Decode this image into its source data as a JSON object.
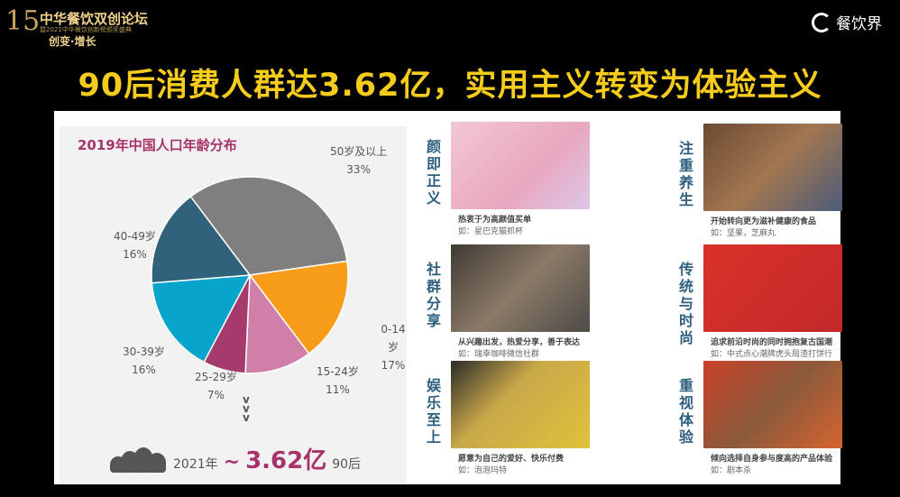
{
  "logo": {
    "number": "15",
    "name": "中华餐饮双创论坛",
    "subtitle": "暨2021中华餐饮创新榜颁奖盛典",
    "slogan": "创变·增长"
  },
  "brand": {
    "name": "餐饮界"
  },
  "title": "90后消费人群达3.62亿，实用主义转变为体验主义",
  "chart_data": {
    "type": "pie",
    "title": "2019年中国人口年龄分布",
    "categories": [
      "50岁及以上",
      "0-14岁",
      "15-24岁",
      "25-29岁",
      "30-39岁",
      "40-49岁"
    ],
    "values": [
      33,
      17,
      11,
      7,
      16,
      16
    ],
    "value_labels": [
      "33%",
      "17%",
      "11%",
      "7%",
      "16%",
      "16%"
    ],
    "colors": [
      "#7f7f7f",
      "#f99c1a",
      "#d07fa8",
      "#a53b6d",
      "#08a4cc",
      "#31627b"
    ]
  },
  "summary": {
    "year": "2021年",
    "tilde": "~",
    "value": "3.62亿",
    "suffix": "90后"
  },
  "trends": [
    {
      "heading": "颜即正义",
      "line1": "热衷于为高颜值买单",
      "line2": "如：星巴克猫抓杯"
    },
    {
      "heading": "注重养生",
      "line1": "开始转向更为滋补健康的食品",
      "line2": "如：坚果，芝麻丸"
    },
    {
      "heading": "社群分享",
      "line1": "从兴趣出发，热爱分享，善于表达",
      "line2": "如：瑞幸咖啡微信社群"
    },
    {
      "heading": "传统与时尚",
      "line1": "追求前沿时尚的同时拥抱复古国潮",
      "line2": "如：中式点心潮牌虎头局渣打饼行"
    },
    {
      "heading": "娱乐至上",
      "line1": "愿意为自己的爱好、快乐付费",
      "line2": "如：泡泡玛特"
    },
    {
      "heading": "重视体验",
      "line1": "倾向选择自身参与度高的产品体验",
      "line2": "如：剧本杀"
    }
  ]
}
